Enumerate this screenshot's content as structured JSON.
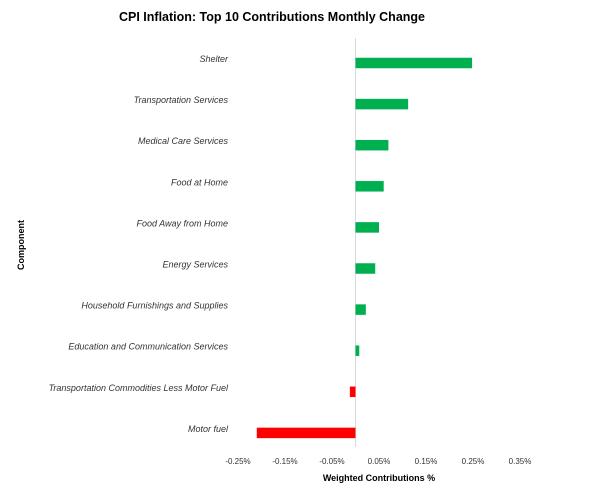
{
  "chart_data": {
    "type": "bar",
    "orientation": "horizontal",
    "title": "CPI Inflation: Top 10 Contributions Monthly Change",
    "xlabel": "Weighted Contributions %",
    "ylabel": "Component",
    "xlim": [
      -0.25,
      0.35
    ],
    "xticks": [
      -0.25,
      -0.15,
      -0.05,
      0.05,
      0.15,
      0.25,
      0.35
    ],
    "xtick_labels": [
      "-0.25%",
      "-0.15%",
      "-0.05%",
      "0.05%",
      "0.15%",
      "0.25%",
      "0.35%"
    ],
    "zero_line": 0.0,
    "categories": [
      "Shelter",
      "Transportation Services",
      "Medical Care Services",
      "Food at Home",
      "Food Away from Home",
      "Energy Services",
      "Household Furnishings and Supplies",
      "Education and Communication Services",
      "Transportation Commodities Less Motor Fuel",
      "Motor fuel"
    ],
    "values": [
      0.248,
      0.112,
      0.07,
      0.06,
      0.05,
      0.042,
      0.022,
      0.008,
      -0.012,
      -0.21
    ],
    "colors": {
      "positive": "#00b050",
      "negative": "#ff0000",
      "axis": "#d9d9d9"
    },
    "grid": false,
    "legend": "none"
  }
}
